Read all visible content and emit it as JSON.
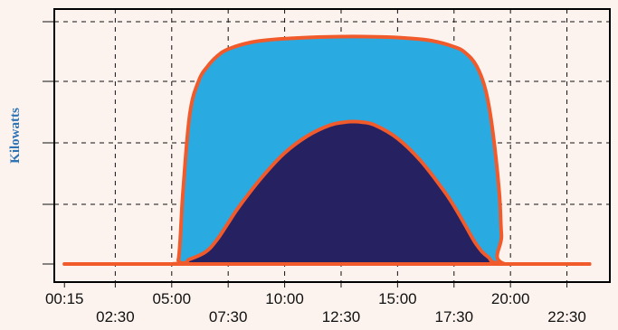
{
  "chart_data": {
    "type": "area",
    "ylabel": "Kilowatts",
    "xlabel": "",
    "title": "",
    "x_tick_labels": [
      "00:15",
      "02:30",
      "05:00",
      "07:30",
      "10:00",
      "12:30",
      "15:00",
      "17:30",
      "20:00",
      "22:30"
    ],
    "x_tick_hours": [
      0.25,
      2.5,
      5.0,
      7.5,
      10.0,
      12.5,
      15.0,
      17.5,
      20.0,
      22.5
    ],
    "xlim": [
      0.0,
      24.0
    ],
    "ylim": [
      0.0,
      1.0
    ],
    "grid": true,
    "legend": "none",
    "series": [
      {
        "color": "#29abe2",
        "x": [
          0.25,
          5.0,
          5.3,
          5.5,
          5.8,
          6.2,
          6.6,
          7.0,
          7.5,
          8.5,
          9.5,
          10.5,
          11.5,
          12.5,
          13.5,
          14.5,
          15.5,
          16.5,
          17.5,
          18.0,
          18.5,
          18.9,
          19.2,
          19.5,
          19.6,
          19.75,
          23.5
        ],
        "y": [
          0.0,
          0.0,
          0.02,
          0.3,
          0.62,
          0.76,
          0.82,
          0.86,
          0.89,
          0.918,
          0.93,
          0.936,
          0.94,
          0.942,
          0.942,
          0.94,
          0.935,
          0.925,
          0.9,
          0.875,
          0.82,
          0.72,
          0.56,
          0.3,
          0.12,
          0.0,
          0.0
        ]
      },
      {
        "color": "#262262",
        "x": [
          0.25,
          5.0,
          5.8,
          6.5,
          7.0,
          7.5,
          8.0,
          9.0,
          10.0,
          11.0,
          12.0,
          12.7,
          13.0,
          13.4,
          14.0,
          15.0,
          16.0,
          17.0,
          17.5,
          18.0,
          18.5,
          19.0,
          19.75,
          23.5
        ],
        "y": [
          0.0,
          0.0,
          0.02,
          0.05,
          0.1,
          0.17,
          0.24,
          0.36,
          0.46,
          0.53,
          0.575,
          0.588,
          0.59,
          0.588,
          0.575,
          0.52,
          0.43,
          0.31,
          0.24,
          0.16,
          0.08,
          0.03,
          0.0,
          0.0
        ]
      }
    ],
    "outline_color": "#f15a2b"
  }
}
